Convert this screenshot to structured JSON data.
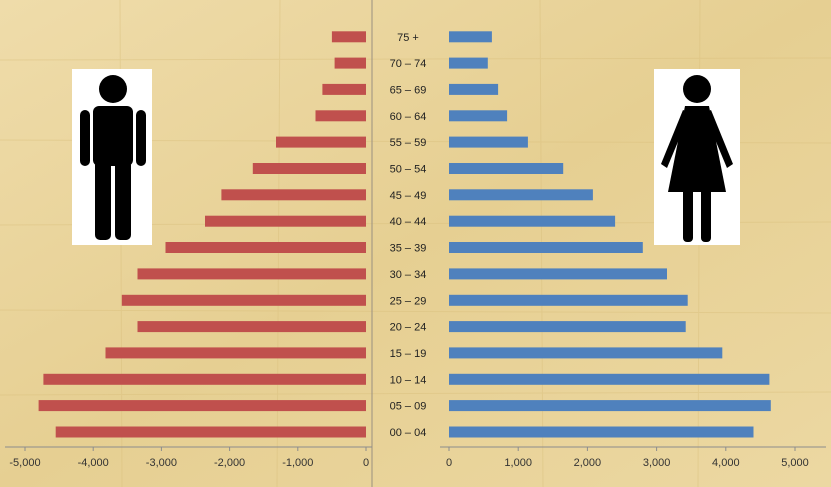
{
  "chart_data": {
    "type": "bar",
    "orientation": "horizontal",
    "layout": "population-pyramid",
    "categories": [
      "00 – 04",
      "05 – 09",
      "10 – 14",
      "15 – 19",
      "20 – 24",
      "25 – 29",
      "30 – 34",
      "35 – 39",
      "40 – 44",
      "45 – 49",
      "50 – 54",
      "55 – 59",
      "60 – 64",
      "65 – 69",
      "70 – 74",
      "75 +"
    ],
    "series": [
      {
        "side": "left",
        "icon": "male-figure-icon",
        "color": "#c0504d",
        "values": [
          -4550,
          -4800,
          -4730,
          -3820,
          -3350,
          -3580,
          -3350,
          -2940,
          -2360,
          -2120,
          -1660,
          -1320,
          -740,
          -640,
          -460,
          -500
        ]
      },
      {
        "side": "right",
        "icon": "female-figure-icon",
        "color": "#4f81bd",
        "values": [
          4400,
          4650,
          4630,
          3950,
          3420,
          3450,
          3150,
          2800,
          2400,
          2080,
          1650,
          1140,
          840,
          710,
          560,
          620
        ]
      }
    ],
    "left_axis": {
      "xlim": [
        -5000,
        0
      ],
      "ticks": [
        "-5,000",
        "-4,000",
        "-3,000",
        "-2,000",
        "-1,000",
        "0"
      ]
    },
    "right_axis": {
      "xlim": [
        0,
        5000
      ],
      "ticks": [
        "0",
        "1,000",
        "2,000",
        "3,000",
        "4,000",
        "5,000"
      ]
    },
    "grid": false,
    "legend": "none",
    "title": "",
    "xlabel": "",
    "ylabel": ""
  }
}
